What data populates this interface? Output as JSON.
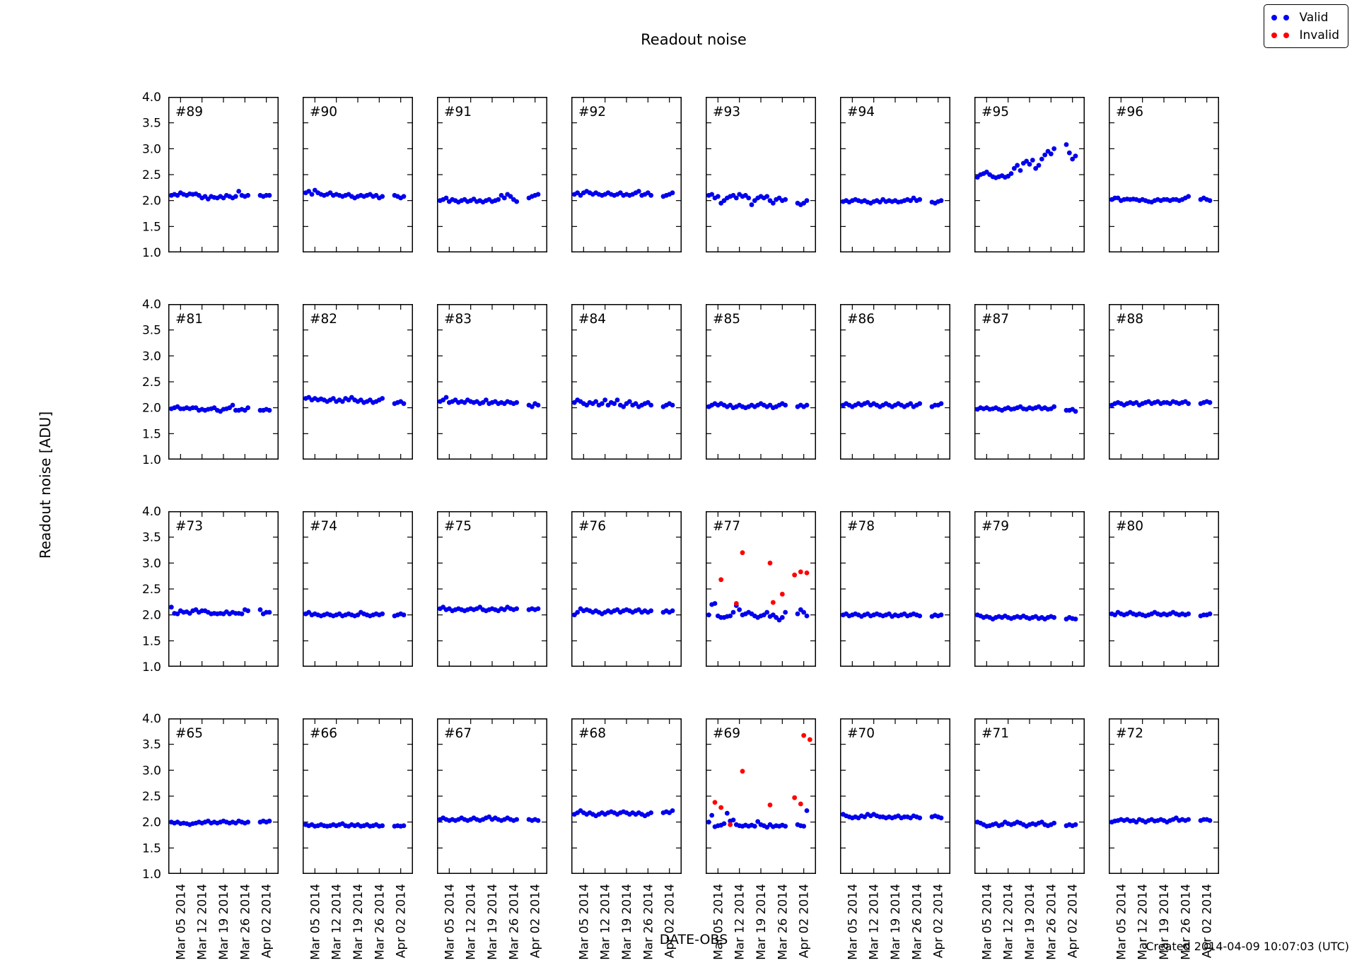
{
  "figure": {
    "created": "Created 2014-04-09 10:07:03 (UTC)"
  },
  "legend": {
    "items": [
      {
        "label": "Valid",
        "color": "#0000ff"
      },
      {
        "label": "Invalid",
        "color": "#ff0000"
      }
    ]
  },
  "chart_data": {
    "type": "scatter",
    "title": "Readout noise",
    "xlabel": "DATE-OBS",
    "ylabel": "Readout noise [ADU]",
    "grid": {
      "rows": 4,
      "cols": 8
    },
    "ylim": [
      1.0,
      4.0
    ],
    "yticks": [
      4.0,
      3.5,
      3.0,
      2.5,
      2.0,
      1.5,
      1.0
    ],
    "ytick_labels": [
      "4.0",
      "3.5",
      "3.0",
      "2.5",
      "2.0",
      "1.5",
      "1.0"
    ],
    "xlim_days": [
      0,
      36
    ],
    "xticks": [
      {
        "day": 4,
        "label": "Mar 05 2014"
      },
      {
        "day": 11,
        "label": "Mar 12 2014"
      },
      {
        "day": 18,
        "label": "Mar 19 2014"
      },
      {
        "day": 25,
        "label": "Mar 26 2014"
      },
      {
        "day": 32,
        "label": "Apr 02 2014"
      }
    ],
    "colors": {
      "valid": "#0000ee",
      "invalid": "#ff0000",
      "axis": "#000000"
    },
    "x_days": [
      1,
      2,
      3,
      4,
      5,
      6,
      7,
      8,
      9,
      10,
      11,
      12,
      13,
      14,
      15,
      16,
      17,
      18,
      19,
      20,
      21,
      22,
      23,
      24,
      25,
      26,
      30,
      31,
      32,
      33
    ],
    "panels": [
      {
        "label": "#89",
        "valid_y": [
          2.1,
          2.12,
          2.1,
          2.15,
          2.12,
          2.1,
          2.13,
          2.12,
          2.13,
          2.1,
          2.05,
          2.08,
          2.03,
          2.08,
          2.06,
          2.05,
          2.08,
          2.05,
          2.1,
          2.08,
          2.05,
          2.08,
          2.18,
          2.1,
          2.08,
          2.1,
          2.1,
          2.08,
          2.1,
          2.1
        ]
      },
      {
        "label": "#90",
        "valid_y": [
          2.15,
          2.18,
          2.12,
          2.2,
          2.15,
          2.12,
          2.1,
          2.12,
          2.15,
          2.1,
          2.12,
          2.1,
          2.08,
          2.1,
          2.12,
          2.08,
          2.05,
          2.08,
          2.1,
          2.08,
          2.1,
          2.12,
          2.08,
          2.1,
          2.05,
          2.08,
          2.1,
          2.08,
          2.05,
          2.08
        ]
      },
      {
        "label": "#91",
        "valid_y": [
          2.0,
          2.02,
          2.05,
          1.98,
          2.02,
          2.0,
          1.97,
          2.0,
          2.02,
          1.98,
          2.0,
          2.03,
          1.98,
          2.0,
          1.97,
          2.0,
          2.02,
          1.98,
          2.0,
          2.02,
          2.1,
          2.05,
          2.12,
          2.08,
          2.02,
          1.98,
          2.05,
          2.08,
          2.1,
          2.12
        ]
      },
      {
        "label": "#92",
        "valid_y": [
          2.12,
          2.15,
          2.1,
          2.15,
          2.18,
          2.15,
          2.12,
          2.15,
          2.12,
          2.1,
          2.12,
          2.15,
          2.12,
          2.1,
          2.12,
          2.15,
          2.1,
          2.12,
          2.1,
          2.12,
          2.15,
          2.18,
          2.1,
          2.12,
          2.15,
          2.1,
          2.08,
          2.1,
          2.12,
          2.15
        ]
      },
      {
        "label": "#93",
        "valid_y": [
          2.1,
          2.12,
          2.05,
          2.08,
          1.95,
          2.0,
          2.05,
          2.08,
          2.1,
          2.05,
          2.12,
          2.08,
          2.1,
          2.05,
          1.92,
          2.0,
          2.05,
          2.08,
          2.05,
          2.08,
          2.0,
          1.95,
          2.02,
          2.05,
          2.0,
          2.02,
          1.95,
          1.92,
          1.95,
          2.0
        ]
      },
      {
        "label": "#94",
        "valid_y": [
          1.98,
          2.0,
          1.97,
          2.0,
          2.02,
          2.0,
          1.98,
          2.0,
          1.97,
          1.95,
          1.98,
          2.0,
          1.97,
          2.02,
          1.98,
          2.0,
          1.98,
          2.0,
          1.97,
          1.98,
          2.0,
          2.02,
          2.0,
          2.05,
          2.0,
          2.02,
          1.97,
          1.95,
          1.98,
          2.0
        ]
      },
      {
        "label": "#95",
        "valid_y": [
          2.45,
          2.5,
          2.52,
          2.55,
          2.5,
          2.46,
          2.44,
          2.46,
          2.48,
          2.45,
          2.47,
          2.52,
          2.62,
          2.68,
          2.58,
          2.72,
          2.76,
          2.7,
          2.78,
          2.62,
          2.68,
          2.8,
          2.88,
          2.95,
          2.9,
          3.0,
          3.08,
          2.92,
          2.8,
          2.86
        ]
      },
      {
        "label": "#96",
        "valid_y": [
          2.02,
          2.05,
          2.05,
          2.0,
          2.02,
          2.03,
          2.02,
          2.03,
          2.02,
          2.0,
          2.02,
          2.0,
          1.98,
          1.97,
          2.0,
          2.02,
          2.0,
          2.02,
          2.02,
          2.0,
          2.02,
          2.02,
          2.0,
          2.02,
          2.05,
          2.08,
          2.02,
          2.05,
          2.02,
          2.0
        ]
      },
      {
        "label": "#81",
        "valid_y": [
          1.98,
          2.0,
          2.02,
          1.98,
          1.98,
          2.0,
          1.98,
          2.0,
          2.0,
          1.95,
          1.97,
          1.95,
          1.97,
          1.98,
          2.0,
          1.95,
          1.93,
          1.97,
          1.98,
          2.0,
          2.05,
          1.95,
          1.95,
          1.97,
          1.95,
          2.0,
          1.95,
          1.95,
          1.97,
          1.95
        ]
      },
      {
        "label": "#82",
        "valid_y": [
          2.18,
          2.2,
          2.15,
          2.18,
          2.15,
          2.17,
          2.15,
          2.12,
          2.15,
          2.18,
          2.12,
          2.15,
          2.12,
          2.18,
          2.15,
          2.2,
          2.15,
          2.12,
          2.15,
          2.1,
          2.12,
          2.15,
          2.1,
          2.12,
          2.15,
          2.18,
          2.08,
          2.1,
          2.12,
          2.08
        ]
      },
      {
        "label": "#83",
        "valid_y": [
          2.12,
          2.15,
          2.2,
          2.1,
          2.12,
          2.15,
          2.1,
          2.12,
          2.1,
          2.15,
          2.12,
          2.1,
          2.12,
          2.08,
          2.1,
          2.15,
          2.08,
          2.1,
          2.12,
          2.08,
          2.1,
          2.08,
          2.12,
          2.1,
          2.08,
          2.1,
          2.05,
          2.02,
          2.08,
          2.05
        ]
      },
      {
        "label": "#84",
        "valid_y": [
          2.1,
          2.15,
          2.12,
          2.08,
          2.05,
          2.1,
          2.08,
          2.12,
          2.05,
          2.08,
          2.15,
          2.05,
          2.1,
          2.08,
          2.15,
          2.05,
          2.02,
          2.08,
          2.12,
          2.05,
          2.08,
          2.02,
          2.05,
          2.08,
          2.1,
          2.05,
          2.02,
          2.05,
          2.08,
          2.05
        ]
      },
      {
        "label": "#85",
        "valid_y": [
          2.02,
          2.05,
          2.08,
          2.05,
          2.08,
          2.05,
          2.02,
          2.05,
          2.0,
          2.02,
          2.05,
          2.02,
          2.0,
          2.02,
          2.05,
          2.02,
          2.05,
          2.08,
          2.05,
          2.02,
          2.05,
          2.0,
          2.02,
          2.05,
          2.08,
          2.05,
          2.02,
          2.05,
          2.02,
          2.05
        ]
      },
      {
        "label": "#86",
        "valid_y": [
          2.05,
          2.08,
          2.05,
          2.02,
          2.05,
          2.08,
          2.05,
          2.08,
          2.1,
          2.05,
          2.08,
          2.05,
          2.02,
          2.05,
          2.08,
          2.05,
          2.02,
          2.05,
          2.08,
          2.05,
          2.02,
          2.05,
          2.08,
          2.02,
          2.05,
          2.08,
          2.02,
          2.05,
          2.05,
          2.08
        ]
      },
      {
        "label": "#87",
        "valid_y": [
          1.97,
          2.0,
          1.98,
          2.0,
          1.97,
          1.98,
          2.0,
          1.97,
          1.95,
          1.98,
          2.0,
          1.97,
          1.98,
          2.0,
          2.02,
          1.98,
          1.97,
          2.0,
          1.98,
          2.0,
          2.02,
          1.98,
          2.0,
          1.97,
          1.98,
          2.02,
          1.95,
          1.95,
          1.97,
          1.93
        ]
      },
      {
        "label": "#88",
        "valid_y": [
          2.05,
          2.08,
          2.1,
          2.08,
          2.05,
          2.08,
          2.1,
          2.08,
          2.1,
          2.05,
          2.08,
          2.1,
          2.12,
          2.08,
          2.1,
          2.12,
          2.08,
          2.1,
          2.1,
          2.08,
          2.12,
          2.1,
          2.08,
          2.1,
          2.12,
          2.08,
          2.08,
          2.1,
          2.12,
          2.1
        ]
      },
      {
        "label": "#73",
        "valid_y": [
          2.15,
          2.03,
          2.02,
          2.08,
          2.05,
          2.06,
          2.03,
          2.08,
          2.1,
          2.05,
          2.08,
          2.08,
          2.05,
          2.02,
          2.03,
          2.02,
          2.03,
          2.02,
          2.06,
          2.02,
          2.05,
          2.03,
          2.03,
          2.02,
          2.1,
          2.08,
          2.1,
          2.02,
          2.05,
          2.05
        ]
      },
      {
        "label": "#74",
        "valid_y": [
          2.02,
          2.05,
          2.0,
          2.02,
          2.0,
          1.98,
          2.0,
          2.02,
          2.0,
          1.98,
          2.0,
          2.02,
          1.98,
          2.0,
          2.02,
          2.0,
          1.98,
          2.0,
          2.05,
          2.02,
          2.0,
          1.98,
          2.0,
          2.02,
          2.0,
          2.02,
          1.98,
          2.0,
          2.02,
          2.0
        ]
      },
      {
        "label": "#75",
        "valid_y": [
          2.12,
          2.15,
          2.1,
          2.12,
          2.08,
          2.1,
          2.12,
          2.1,
          2.08,
          2.1,
          2.12,
          2.1,
          2.12,
          2.15,
          2.1,
          2.08,
          2.1,
          2.12,
          2.1,
          2.08,
          2.12,
          2.1,
          2.15,
          2.12,
          2.1,
          2.12,
          2.1,
          2.12,
          2.1,
          2.12
        ]
      },
      {
        "label": "#76",
        "valid_y": [
          2.0,
          2.05,
          2.12,
          2.08,
          2.1,
          2.08,
          2.05,
          2.08,
          2.05,
          2.02,
          2.05,
          2.08,
          2.05,
          2.08,
          2.1,
          2.05,
          2.08,
          2.1,
          2.08,
          2.05,
          2.08,
          2.1,
          2.05,
          2.08,
          2.05,
          2.08,
          2.05,
          2.08,
          2.05,
          2.08
        ]
      },
      {
        "label": "#77",
        "valid_y": [
          2.0,
          2.2,
          2.22,
          1.98,
          1.95,
          1.95,
          1.97,
          1.98,
          2.05,
          2.18,
          2.1,
          2.0,
          2.02,
          2.05,
          2.02,
          1.98,
          1.95,
          1.98,
          2.0,
          2.05,
          1.97,
          2.0,
          1.95,
          1.9,
          1.95,
          2.05,
          2.02,
          2.1,
          2.05,
          1.98
        ],
        "invalid": {
          "x": [
            5,
            10,
            12,
            21,
            22,
            25,
            29,
            31,
            33
          ],
          "y": [
            2.68,
            2.22,
            3.2,
            3.0,
            2.24,
            2.4,
            2.77,
            2.83,
            2.81
          ]
        }
      },
      {
        "label": "#78",
        "valid_y": [
          2.0,
          2.02,
          1.98,
          2.0,
          2.02,
          2.0,
          1.97,
          2.0,
          2.02,
          1.98,
          2.0,
          2.02,
          2.0,
          1.98,
          2.0,
          2.02,
          1.97,
          2.0,
          1.98,
          2.0,
          2.02,
          1.98,
          2.0,
          2.02,
          2.0,
          1.98,
          1.97,
          2.0,
          1.98,
          2.0
        ]
      },
      {
        "label": "#79",
        "valid_y": [
          2.0,
          1.98,
          1.95,
          1.97,
          1.95,
          1.92,
          1.95,
          1.97,
          1.95,
          1.98,
          1.95,
          1.93,
          1.95,
          1.97,
          1.95,
          1.98,
          1.95,
          1.93,
          1.95,
          1.97,
          1.93,
          1.95,
          1.92,
          1.95,
          1.97,
          1.95,
          1.92,
          1.95,
          1.93,
          1.92
        ]
      },
      {
        "label": "#80",
        "valid_y": [
          2.02,
          2.0,
          2.05,
          2.02,
          2.0,
          2.02,
          2.05,
          2.02,
          2.0,
          2.02,
          2.0,
          1.98,
          2.0,
          2.02,
          2.05,
          2.02,
          2.0,
          2.02,
          2.0,
          2.02,
          2.05,
          2.02,
          2.0,
          2.02,
          2.0,
          2.02,
          1.98,
          2.0,
          2.0,
          2.02
        ]
      },
      {
        "label": "#65",
        "valid_y": [
          2.0,
          1.98,
          2.0,
          1.97,
          1.98,
          1.97,
          1.95,
          1.97,
          1.98,
          2.0,
          1.98,
          2.0,
          2.02,
          1.98,
          2.0,
          1.98,
          2.0,
          2.02,
          2.0,
          1.98,
          2.0,
          1.98,
          2.02,
          2.0,
          1.98,
          2.0,
          2.0,
          2.02,
          2.0,
          2.02
        ]
      },
      {
        "label": "#66",
        "valid_y": [
          1.95,
          1.93,
          1.95,
          1.92,
          1.93,
          1.95,
          1.93,
          1.92,
          1.93,
          1.95,
          1.93,
          1.95,
          1.97,
          1.93,
          1.92,
          1.95,
          1.93,
          1.95,
          1.92,
          1.93,
          1.95,
          1.92,
          1.93,
          1.95,
          1.92,
          1.93,
          1.92,
          1.93,
          1.92,
          1.93
        ]
      },
      {
        "label": "#67",
        "valid_y": [
          2.05,
          2.08,
          2.05,
          2.03,
          2.05,
          2.03,
          2.05,
          2.08,
          2.05,
          2.03,
          2.05,
          2.08,
          2.05,
          2.03,
          2.05,
          2.08,
          2.1,
          2.05,
          2.08,
          2.05,
          2.03,
          2.05,
          2.08,
          2.05,
          2.03,
          2.05,
          2.05,
          2.03,
          2.05,
          2.03
        ]
      },
      {
        "label": "#68",
        "valid_y": [
          2.15,
          2.18,
          2.22,
          2.18,
          2.15,
          2.18,
          2.15,
          2.12,
          2.15,
          2.18,
          2.15,
          2.18,
          2.2,
          2.18,
          2.15,
          2.18,
          2.2,
          2.18,
          2.15,
          2.18,
          2.15,
          2.18,
          2.15,
          2.12,
          2.15,
          2.18,
          2.18,
          2.2,
          2.18,
          2.22
        ]
      },
      {
        "label": "#69",
        "valid_y": [
          2.0,
          2.13,
          1.91,
          1.93,
          1.94,
          1.97,
          2.17,
          2.02,
          2.04,
          1.95,
          1.93,
          1.92,
          1.94,
          1.92,
          1.94,
          1.92,
          2.01,
          1.95,
          1.93,
          1.9,
          1.95,
          1.91,
          1.93,
          1.92,
          1.94,
          1.92,
          1.95,
          1.93,
          1.92,
          2.22
        ],
        "invalid": {
          "x": [
            3,
            5,
            8,
            12,
            21,
            29,
            31,
            32,
            34
          ],
          "y": [
            2.38,
            2.28,
            1.95,
            2.98,
            2.33,
            2.47,
            2.35,
            3.67,
            3.59
          ]
        }
      },
      {
        "label": "#70",
        "valid_y": [
          2.15,
          2.12,
          2.1,
          2.08,
          2.1,
          2.08,
          2.12,
          2.1,
          2.15,
          2.12,
          2.15,
          2.12,
          2.1,
          2.1,
          2.08,
          2.1,
          2.08,
          2.1,
          2.12,
          2.08,
          2.1,
          2.1,
          2.08,
          2.12,
          2.1,
          2.08,
          2.1,
          2.12,
          2.1,
          2.08
        ]
      },
      {
        "label": "#71",
        "valid_y": [
          2.0,
          1.98,
          1.95,
          1.92,
          1.93,
          1.95,
          1.97,
          1.93,
          1.95,
          2.0,
          1.97,
          1.95,
          1.97,
          2.0,
          1.98,
          1.95,
          1.92,
          1.95,
          1.97,
          1.95,
          1.98,
          2.0,
          1.95,
          1.93,
          1.95,
          1.98,
          1.93,
          1.95,
          1.93,
          1.95
        ]
      },
      {
        "label": "#72",
        "valid_y": [
          2.0,
          2.02,
          2.03,
          2.05,
          2.03,
          2.05,
          2.02,
          2.03,
          2.0,
          2.05,
          2.03,
          2.0,
          2.03,
          2.05,
          2.02,
          2.03,
          2.05,
          2.03,
          2.0,
          2.03,
          2.05,
          2.08,
          2.03,
          2.05,
          2.03,
          2.05,
          2.03,
          2.05,
          2.05,
          2.03
        ]
      }
    ]
  }
}
